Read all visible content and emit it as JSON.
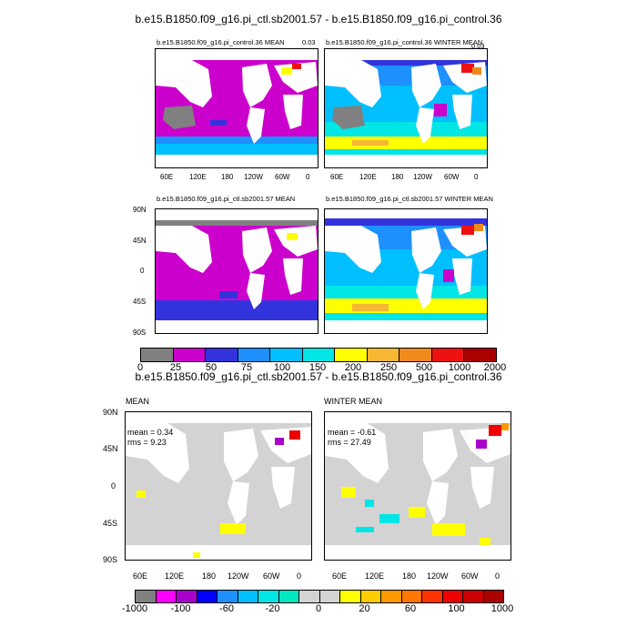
{
  "main_title": "b.e15.B1850.f09_g16.pi_ctl.sb2001.57 - b.e15.B1850.f09_g16.pi_control.36",
  "diff_title": "b.e15.B1850.f09_g16.pi_ctl.sb2001.57 - b.e15.B1850.f09_g16.pi_control.36",
  "panels": {
    "p1": {
      "title": "b.e15.B1850.f09_g16.pi_control.36 MEAN",
      "corner": "0.03"
    },
    "p2": {
      "title": "b.e15.B1850.f09_g16.pi_control.36 WINTER MEAN",
      "corner": "0.03"
    },
    "p3": {
      "title": "b.e15.B1850.f09_g16.pi_ctl.sb2001.57 MEAN"
    },
    "p4": {
      "title": "b.e15.B1850.f09_g16.pi_ctl.sb2001.57 WINTER MEAN"
    },
    "d1": {
      "title": "MEAN",
      "mean": "mean = 0.34",
      "rms": "rms = 9.23"
    },
    "d2": {
      "title": "WINTER MEAN",
      "mean": "mean = -0.61",
      "rms": "rms = 27.49"
    }
  },
  "lon_ticks": [
    "60E",
    "120E",
    "180",
    "120W",
    "60W",
    "0"
  ],
  "lat_ticks": [
    "90N",
    "45N",
    "0",
    "45S",
    "90S"
  ],
  "colorbar1": {
    "labels": [
      "0",
      "25",
      "50",
      "75",
      "100",
      "150",
      "200",
      "250",
      "500",
      "1000",
      "2000"
    ],
    "colors": [
      "#808080",
      "#cc00cc",
      "#3333dd",
      "#1e90ff",
      "#00bfff",
      "#00e5e5",
      "#ffff00",
      "#f7b733",
      "#f08a1c",
      "#ee1111",
      "#aa0000"
    ]
  },
  "colorbar2": {
    "labels": [
      "-1000",
      "-100",
      "-60",
      "-20",
      "0",
      "20",
      "60",
      "100",
      "1000"
    ],
    "colors": [
      "#808080",
      "#ff00ff",
      "#aa00cc",
      "#0000ff",
      "#1e90ff",
      "#00bfff",
      "#00e5e5",
      "#00e8c0",
      "#d3d3d3",
      "#d3d3d3",
      "#ffff00",
      "#ffcc00",
      "#ff9900",
      "#ff7700",
      "#ff3300",
      "#ee0000",
      "#cc0000",
      "#aa0000"
    ]
  },
  "colors": {
    "land": "#ffffff",
    "ocean_mean": "#cc00cc",
    "ocean_diff": "#d3d3d3"
  }
}
